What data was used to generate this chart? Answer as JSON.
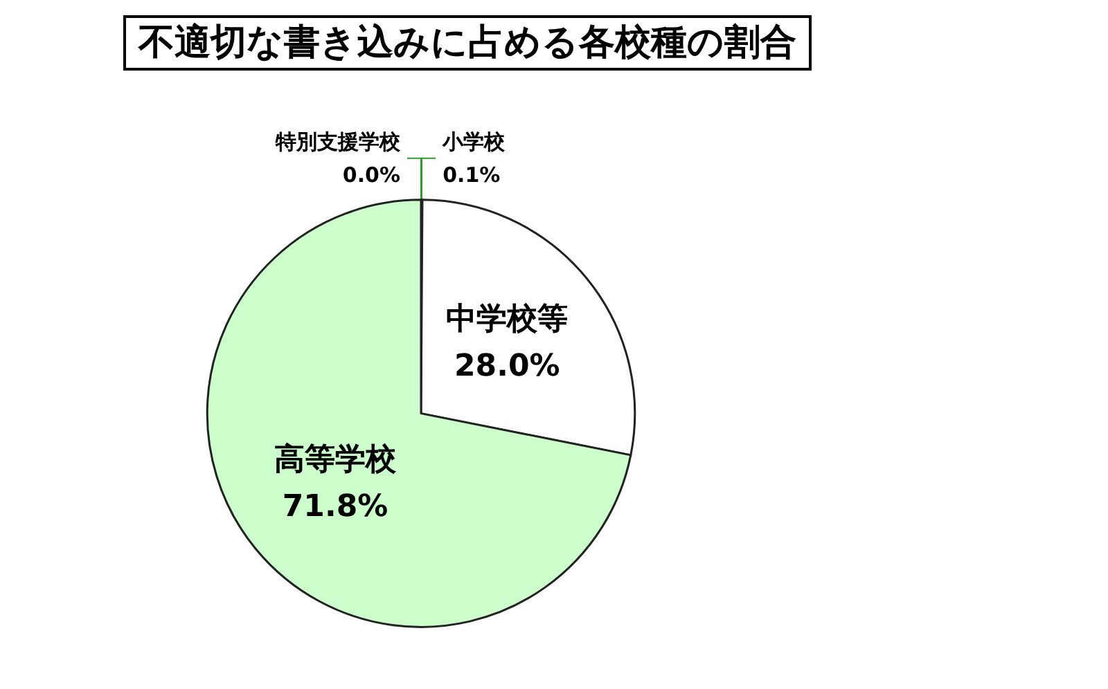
{
  "chart_data": {
    "type": "pie",
    "title": "不適切な書き込みに占める各校種の割合",
    "categories": [
      "特別支援学校",
      "小学校",
      "中学校等",
      "高等学校"
    ],
    "values": [
      0.0,
      0.1,
      28.0,
      71.8
    ],
    "colors": [
      "#99cc99",
      "#339933",
      "#ffffff",
      "#ccffcc"
    ],
    "value_labels": [
      "0.0%",
      "0.1%",
      "28.0%",
      "71.8%"
    ]
  }
}
